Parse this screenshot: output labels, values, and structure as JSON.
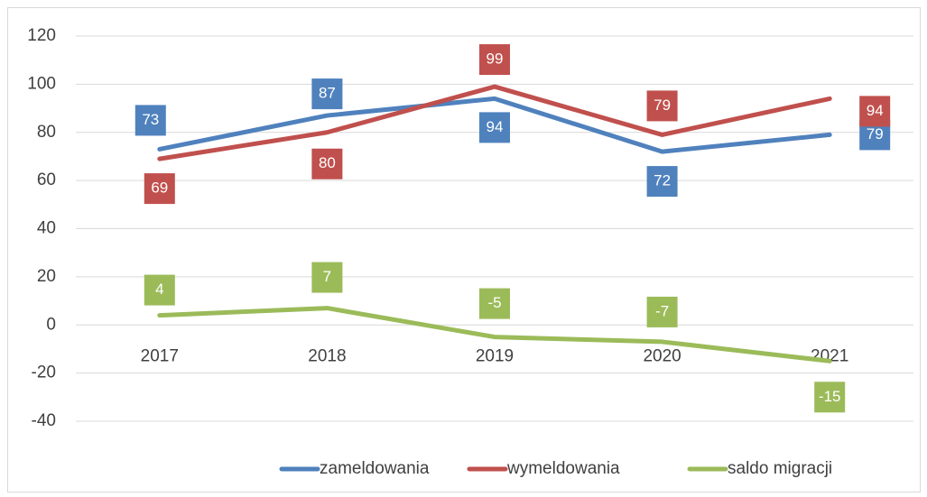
{
  "chart_data": {
    "type": "line",
    "categories": [
      "2017",
      "2018",
      "2019",
      "2020",
      "2021"
    ],
    "series": [
      {
        "name": "zameldowania",
        "color": "#4f81bd",
        "values": [
          73,
          87,
          94,
          72,
          79
        ]
      },
      {
        "name": "wymeldowania",
        "color": "#c0504d",
        "values": [
          69,
          80,
          99,
          79,
          94
        ]
      },
      {
        "name": "saldo migracji",
        "color": "#9bbb59",
        "values": [
          4,
          7,
          -5,
          -7,
          -15
        ]
      }
    ],
    "ylim": [
      -40,
      120
    ],
    "yticks": [
      -40,
      -20,
      0,
      20,
      40,
      60,
      80,
      100,
      120
    ],
    "grid": true,
    "legend": "bottom",
    "data_labels": true
  }
}
